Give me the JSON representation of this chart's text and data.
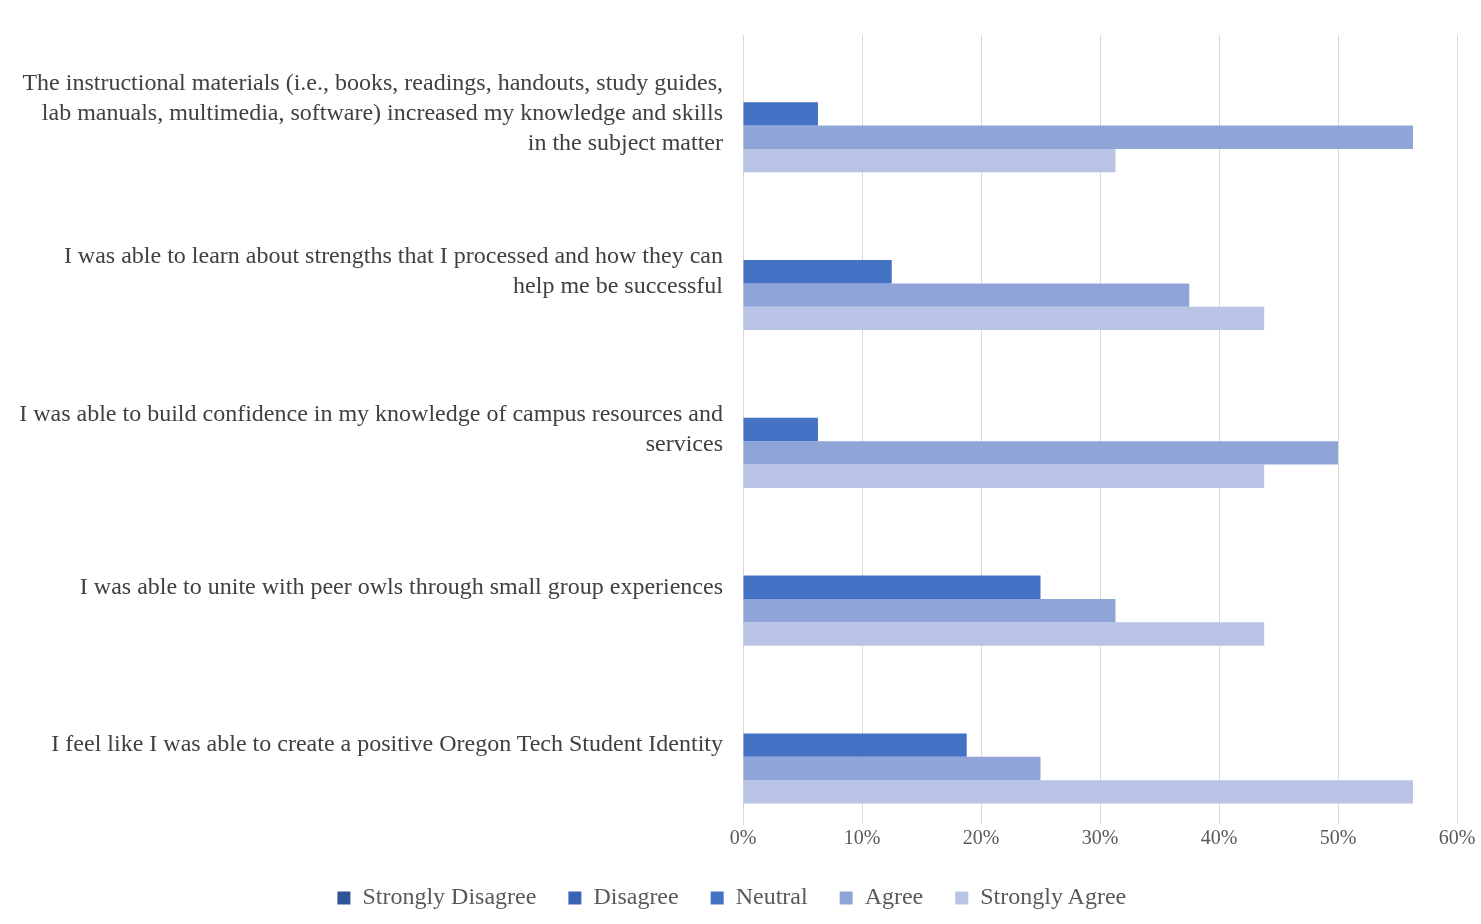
{
  "chart_data": {
    "type": "bar",
    "orientation": "horizontal",
    "categories": [
      "The instructional materials (i.e., books, readings, handouts, study guides, lab manuals, multimedia, software) increased my knowledge and skills in the subject matter",
      "I was able to learn about strengths that I processed and how they can help me be successful",
      "I was able to build confidence in my knowledge of campus resources and services",
      "I was able to unite with peer owls through small group experiences",
      "I feel like I was able to create a positive Oregon Tech Student Identity"
    ],
    "series": [
      {
        "name": "Strongly Disagree",
        "color": "#2f5597",
        "values": [
          0,
          0,
          0,
          0,
          0
        ]
      },
      {
        "name": "Disagree",
        "color": "#3a64b4",
        "values": [
          0,
          0,
          0,
          0,
          0
        ]
      },
      {
        "name": "Neutral",
        "color": "#4472c4",
        "values": [
          6.3,
          12.5,
          6.3,
          25,
          18.8
        ]
      },
      {
        "name": "Agree",
        "color": "#8fa5d8",
        "values": [
          56.3,
          37.5,
          50,
          31.3,
          25
        ]
      },
      {
        "name": "Strongly Agree",
        "color": "#b8c3e5",
        "values": [
          31.3,
          43.8,
          43.8,
          43.8,
          56.3
        ]
      }
    ],
    "xlim": [
      0,
      60
    ],
    "xticks": [
      {
        "value": 0,
        "label": "0%"
      },
      {
        "value": 10,
        "label": "10%"
      },
      {
        "value": 20,
        "label": "20%"
      },
      {
        "value": 30,
        "label": "30%"
      },
      {
        "value": 40,
        "label": "40%"
      },
      {
        "value": 50,
        "label": "50%"
      },
      {
        "value": 60,
        "label": "60%"
      }
    ],
    "grid": "x",
    "legend": "bottom"
  }
}
